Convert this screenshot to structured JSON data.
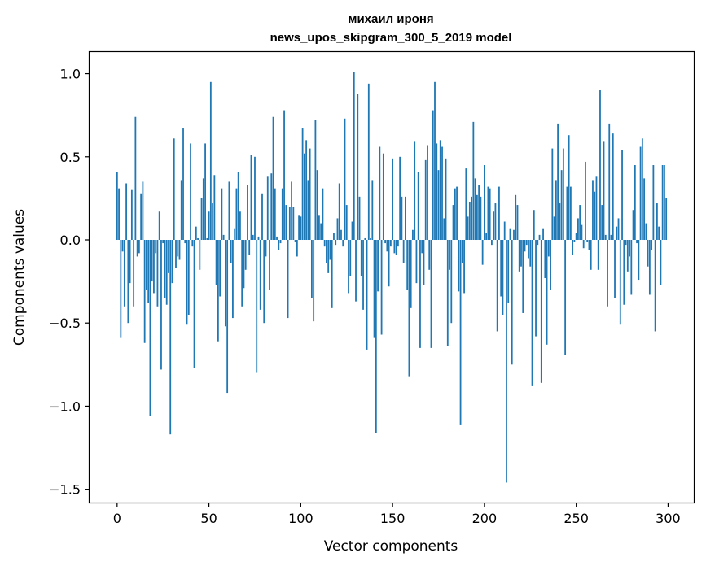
{
  "chart_data": {
    "type": "bar",
    "title": "михаил ироня",
    "subtitle": "news_upos_skipgram_300_5_2019 model",
    "xlabel": "Vector components",
    "ylabel": "Components values",
    "xlim": [
      -15,
      314
    ],
    "ylim": [
      -1.58,
      1.13
    ],
    "xticks": [
      0,
      50,
      100,
      150,
      200,
      250,
      300
    ],
    "xtick_labels": [
      "0",
      "50",
      "100",
      "150",
      "200",
      "250",
      "300"
    ],
    "yticks": [
      1.0,
      0.5,
      0.0,
      -0.5,
      -1.0,
      -1.5
    ],
    "ytick_labels": [
      "1.0",
      "0.5",
      "0.0",
      "−0.5",
      "−1.0",
      "−1.5"
    ],
    "bar_color": "#1f77b4",
    "values": [
      0.41,
      0.31,
      -0.59,
      -0.07,
      -0.4,
      0.34,
      -0.5,
      -0.26,
      0.3,
      -0.4,
      0.74,
      -0.1,
      -0.08,
      0.28,
      0.35,
      -0.62,
      -0.3,
      -0.38,
      -1.06,
      -0.25,
      -0.32,
      -0.08,
      -0.4,
      0.17,
      -0.78,
      -0.02,
      -0.35,
      -0.39,
      -0.2,
      -1.17,
      -0.26,
      0.61,
      -0.17,
      -0.1,
      -0.12,
      0.36,
      0.67,
      -0.02,
      -0.51,
      -0.45,
      0.58,
      -0.04,
      -0.77,
      0.08,
      0.01,
      -0.18,
      0.25,
      0.37,
      0.58,
      0.01,
      0.17,
      0.95,
      0.22,
      0.39,
      -0.27,
      -0.61,
      -0.34,
      0.31,
      0.03,
      -0.52,
      -0.92,
      0.35,
      -0.14,
      -0.47,
      0.07,
      0.31,
      0.41,
      0.17,
      -0.4,
      -0.29,
      -0.18,
      0.33,
      -0.09,
      0.51,
      0.03,
      0.5,
      -0.8,
      0.02,
      -0.42,
      0.28,
      -0.5,
      -0.1,
      0.38,
      -0.3,
      0.4,
      0.74,
      0.31,
      0.02,
      -0.06,
      -0.02,
      0.31,
      0.78,
      0.21,
      -0.47,
      0.2,
      0.35,
      0.2,
      -0.01,
      -0.1,
      0.15,
      0.14,
      0.67,
      0.52,
      0.6,
      0.36,
      0.55,
      -0.35,
      -0.49,
      0.72,
      0.42,
      0.15,
      0.1,
      0.31,
      -0.04,
      -0.14,
      -0.2,
      -0.12,
      -0.41,
      0.04,
      -0.03,
      0.13,
      0.34,
      0.06,
      -0.04,
      0.73,
      0.21,
      -0.32,
      -0.22,
      0.11,
      1.01,
      -0.37,
      0.88,
      0.26,
      -0.22,
      -0.42,
      0.01,
      -0.66,
      0.94,
      0.01,
      0.36,
      -0.59,
      -1.16,
      -0.31,
      0.56,
      -0.57,
      0.52,
      -0.02,
      -0.07,
      -0.28,
      -0.04,
      0.49,
      -0.08,
      -0.09,
      -0.04,
      0.5,
      0.26,
      -0.14,
      0.26,
      -0.3,
      -0.82,
      -0.41,
      0.06,
      0.59,
      -0.26,
      0.41,
      -0.65,
      -0.08,
      -0.27,
      0.48,
      0.57,
      -0.18,
      -0.65,
      0.78,
      0.95,
      0.58,
      0.42,
      0.6,
      0.56,
      0.13,
      0.49,
      -0.64,
      -0.18,
      -0.5,
      0.21,
      0.31,
      0.32,
      -0.31,
      -1.11,
      -0.14,
      -0.32,
      0.43,
      0.14,
      0.23,
      0.26,
      0.71,
      0.37,
      0.27,
      0.33,
      0.26,
      -0.15,
      0.45,
      0.04,
      0.32,
      0.31,
      -0.03,
      0.17,
      0.22,
      -0.55,
      0.32,
      -0.34,
      -0.45,
      0.11,
      -1.46,
      -0.38,
      0.07,
      -0.75,
      0.06,
      0.27,
      0.21,
      -0.19,
      -0.16,
      -0.44,
      -0.07,
      -0.03,
      -0.11,
      -0.16,
      -0.88,
      0.18,
      -0.58,
      -0.03,
      0.03,
      -0.86,
      0.07,
      -0.23,
      -0.63,
      -0.1,
      -0.3,
      0.55,
      0.14,
      0.36,
      0.7,
      0.22,
      0.42,
      0.55,
      -0.69,
      0.32,
      0.63,
      0.32,
      -0.09,
      -0.01,
      0.04,
      0.13,
      0.21,
      0.09,
      -0.05,
      0.47,
      -0.01,
      -0.06,
      -0.18,
      0.36,
      0.29,
      0.38,
      -0.18,
      0.9,
      0.21,
      0.59,
      0.03,
      -0.4,
      0.7,
      0.03,
      0.64,
      -0.35,
      0.08,
      0.13,
      -0.51,
      0.54,
      -0.39,
      -0.03,
      -0.19,
      -0.1,
      -0.33,
      0.18,
      0.45,
      -0.02,
      -0.24,
      0.56,
      0.61,
      0.37,
      0.1,
      -0.16,
      -0.33,
      -0.06,
      0.45,
      -0.55,
      0.22,
      0.08,
      -0.27,
      0.45,
      0.45,
      0.25
    ]
  }
}
